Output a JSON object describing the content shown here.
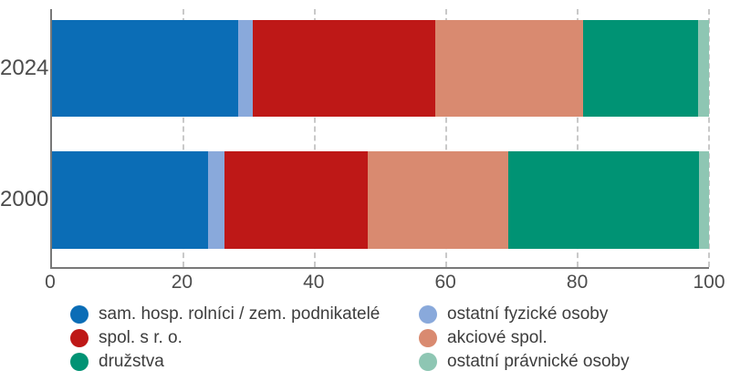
{
  "chart_data": {
    "type": "bar",
    "orientation": "horizontal",
    "stacked": true,
    "unit": "%",
    "categories": [
      "2024",
      "2000"
    ],
    "series": [
      {
        "name": "sam. hosp. rolníci / zem. podnikatelé",
        "color": "#0b6db6",
        "values": [
          28.3,
          23.7
        ]
      },
      {
        "name": "ostatní fyzické osoby",
        "color": "#89a9db",
        "values": [
          2.3,
          2.6
        ]
      },
      {
        "name": "spol. s r. o.",
        "color": "#be1817",
        "values": [
          27.7,
          21.8
        ]
      },
      {
        "name": "akciové spol.",
        "color": "#d98a70",
        "values": [
          22.6,
          21.3
        ]
      },
      {
        "name": "družstva",
        "color": "#009374",
        "values": [
          17.4,
          29.1
        ]
      },
      {
        "name": "ostatní právnické osoby",
        "color": "#8ec6b3",
        "values": [
          1.7,
          1.5
        ]
      }
    ],
    "x_axis": {
      "ticks": [
        "0",
        "20",
        "40",
        "60",
        "80",
        "100"
      ],
      "tick_values": [
        0,
        20,
        40,
        60,
        80,
        100
      ],
      "range": [
        0,
        100
      ],
      "grid": true,
      "grid_style": "dashed"
    },
    "legend": {
      "position": "bottom",
      "columns": [
        [
          0,
          2,
          4
        ],
        [
          1,
          3,
          5
        ]
      ]
    },
    "axis_color": "#787878",
    "grid_color": "#c9c9c9",
    "label_color": "#4c4c4c"
  }
}
